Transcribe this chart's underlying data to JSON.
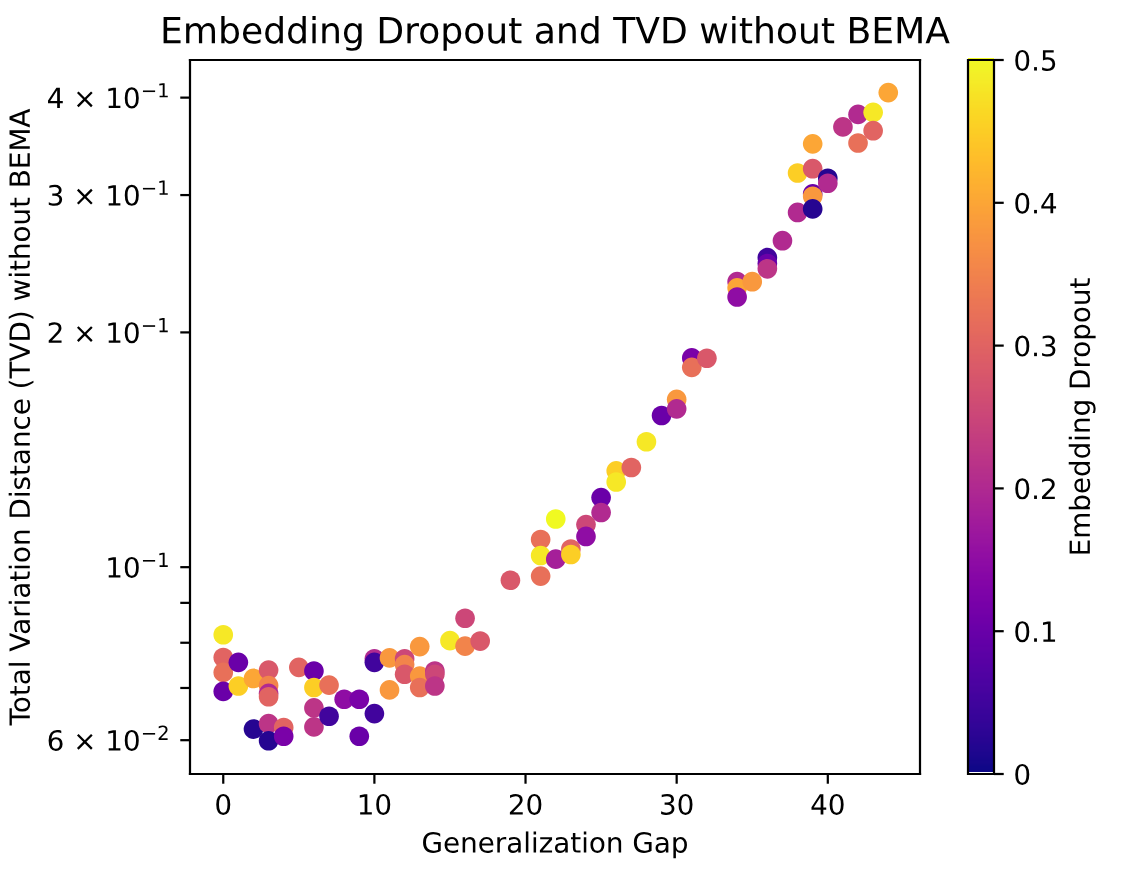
{
  "chart_data": {
    "type": "scatter",
    "title": "Embedding Dropout and TVD without BEMA",
    "xlabel": "Generalization Gap",
    "ylabel": "Total Variation Distance (TVD) without BEMA",
    "clabel": "Embedding Dropout",
    "log": "y",
    "xlim": [
      -2.2,
      46.1
    ],
    "ylim": [
      0.0543,
      0.447
    ],
    "xticks": [
      0,
      10,
      20,
      30,
      40
    ],
    "yticks": [
      {
        "value": 0.06,
        "label": "6 × 10$^{−2}$"
      },
      {
        "value": 0.07,
        "label": null
      },
      {
        "value": 0.08,
        "label": null
      },
      {
        "value": 0.09,
        "label": null
      },
      {
        "value": 0.1,
        "label": "10$^{−1}$"
      },
      {
        "value": 0.2,
        "label": "2 × 10$^{−1}$"
      },
      {
        "value": 0.3,
        "label": "3 × 10$^{−1}$"
      },
      {
        "value": 0.4,
        "label": "4 × 10$^{−1}$"
      }
    ],
    "clim": [
      0,
      0.5
    ],
    "cticks": [
      0,
      0.1,
      0.2,
      0.3,
      0.4,
      0.5
    ],
    "grid": false,
    "marker": "circle",
    "x": [
      0,
      0,
      0,
      0,
      1,
      1,
      2,
      2,
      3,
      3,
      3,
      3,
      3,
      3,
      4,
      4,
      5,
      6,
      6,
      6,
      6,
      7,
      7,
      8,
      9,
      9,
      10,
      10,
      10,
      11,
      11,
      12,
      12,
      12,
      13,
      13,
      13,
      14,
      14,
      14,
      15,
      16,
      16,
      17,
      19,
      21,
      21,
      21,
      22,
      22,
      23,
      23,
      24,
      24,
      25,
      25,
      26,
      26,
      27,
      28,
      29,
      30,
      30,
      31,
      31,
      32,
      34,
      34,
      34,
      35,
      36,
      36,
      36,
      37,
      38,
      38,
      39,
      39,
      39,
      39,
      39,
      40,
      40,
      41,
      42,
      42,
      43,
      43,
      44
    ],
    "values": [
      0.0819,
      0.0766,
      0.0733,
      0.0693,
      0.0755,
      0.0704,
      0.072,
      0.062,
      0.0738,
      0.0705,
      0.0689,
      0.0682,
      0.063,
      0.0599,
      0.0623,
      0.0607,
      0.0744,
      0.0736,
      0.0701,
      0.066,
      0.0624,
      0.0706,
      0.0644,
      0.0677,
      0.0677,
      0.0607,
      0.0763,
      0.0755,
      0.0649,
      0.0765,
      0.0696,
      0.0763,
      0.075,
      0.0729,
      0.0791,
      0.0725,
      0.0701,
      0.0736,
      0.0729,
      0.0704,
      0.0805,
      0.086,
      0.0792,
      0.0804,
      0.0962,
      0.1085,
      0.1035,
      0.0974,
      0.1153,
      0.1024,
      0.1055,
      0.1038,
      0.1134,
      0.1095,
      0.1228,
      0.1175,
      0.1329,
      0.1286,
      0.1342,
      0.1448,
      0.1565,
      0.1641,
      0.1596,
      0.1855,
      0.1804,
      0.1853,
      0.2323,
      0.2281,
      0.222,
      0.2323,
      0.2494,
      0.2451,
      0.2413,
      0.2622,
      0.285,
      0.3202,
      0.349,
      0.3243,
      0.3011,
      0.299,
      0.288,
      0.3153,
      0.3107,
      0.3669,
      0.3807,
      0.3499,
      0.383,
      0.3628,
      0.406
    ],
    "cvalues": [
      0.48,
      0.3,
      0.32,
      0.1,
      0.1,
      0.45,
      0.4,
      0.02,
      0.28,
      0.35,
      0.2,
      0.3,
      0.22,
      0.02,
      0.3,
      0.12,
      0.3,
      0.1,
      0.45,
      0.22,
      0.22,
      0.32,
      0.05,
      0.15,
      0.12,
      0.1,
      0.2,
      0.05,
      0.05,
      0.38,
      0.38,
      0.25,
      0.35,
      0.28,
      0.38,
      0.38,
      0.32,
      0.22,
      0.25,
      0.22,
      0.48,
      0.25,
      0.35,
      0.28,
      0.28,
      0.32,
      0.48,
      0.32,
      0.5,
      0.18,
      0.3,
      0.45,
      0.25,
      0.15,
      0.1,
      0.2,
      0.45,
      0.48,
      0.3,
      0.48,
      0.1,
      0.38,
      0.2,
      0.12,
      0.32,
      0.28,
      0.2,
      0.4,
      0.15,
      0.38,
      0.05,
      0.1,
      0.22,
      0.2,
      0.2,
      0.45,
      0.4,
      0.28,
      0.1,
      0.38,
      0.02,
      0.02,
      0.2,
      0.22,
      0.2,
      0.32,
      0.48,
      0.3,
      0.4
    ]
  }
}
